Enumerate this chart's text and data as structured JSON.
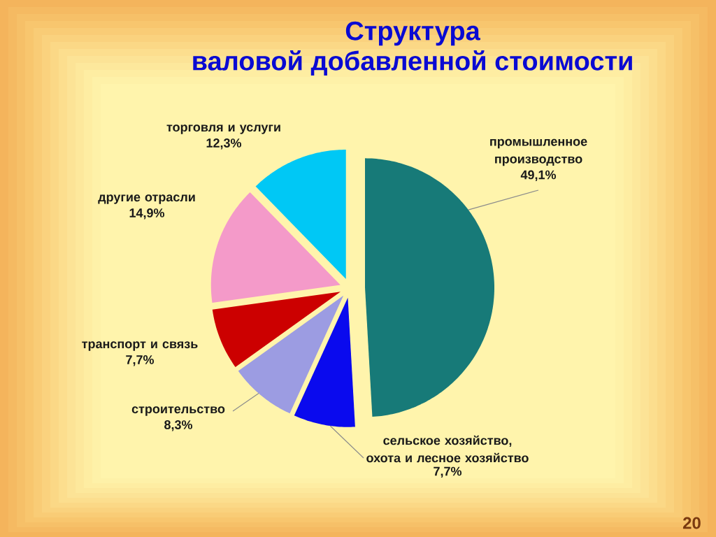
{
  "chart_data": {
    "type": "pie",
    "title": "Структура",
    "subtitle": "валовой добавленной стоимости",
    "categories": [
      "промышленное производство",
      "сельское хозяйство, охота и лесное хозяйство",
      "строительство",
      "транспорт и связь",
      "другие отрасли",
      "торговля и услуги"
    ],
    "values": [
      49.1,
      7.7,
      8.3,
      7.7,
      14.9,
      12.3
    ],
    "colors": [
      "#177a78",
      "#0a0aee",
      "#9c9ce2",
      "#cc0000",
      "#f49ac9",
      "#00c8f5"
    ],
    "value_labels": [
      "49,1%",
      "7,7%",
      "8,3%",
      "7,7%",
      "14,9%",
      "12,3%"
    ],
    "annotations": [
      "20"
    ]
  }
}
